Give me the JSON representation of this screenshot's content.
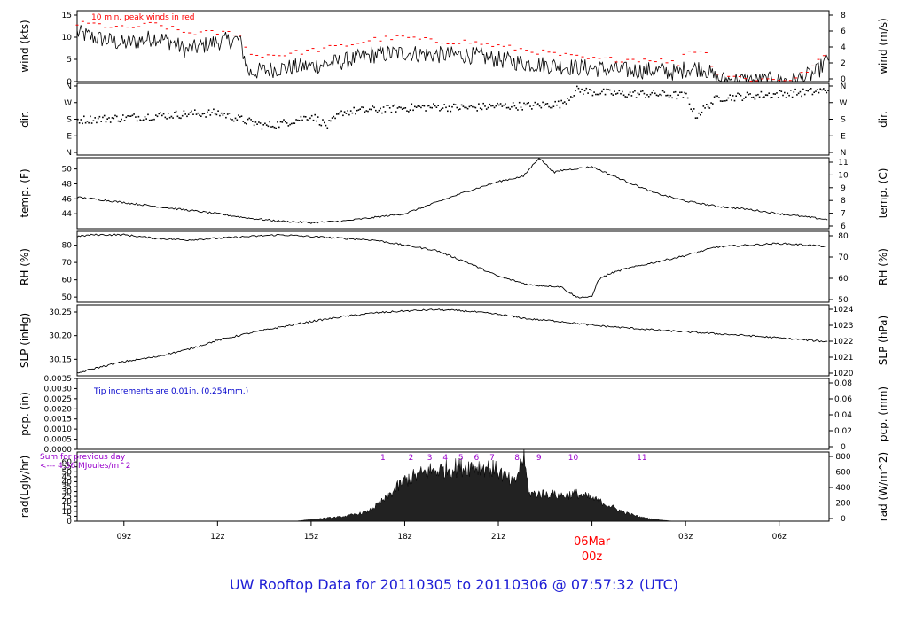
{
  "footer_title": "UW Rooftop Data for 20110305  to  20110306 @ 07:57:32  (UTC)",
  "colors": {
    "frame": "#000000",
    "trace": "#000000",
    "peak": "#ff0000",
    "note_blue": "#0000cc",
    "note_purple": "#9900cc",
    "footer": "#1f1fd6",
    "date_marker": "#ff0000"
  },
  "x_axis": {
    "ticks": [
      "09z",
      "12z",
      "15z",
      "18z",
      "21z",
      "03z",
      "06z"
    ],
    "date_marker": {
      "day": "06Mar",
      "hour": "00z"
    }
  },
  "chart_data": [
    {
      "type": "line",
      "panel": "wind",
      "ylabel": "wind (kts)",
      "ylabel_right": "wind (m/s)",
      "annotation": "10 min. peak winds in red",
      "yticks": [
        "0",
        "5",
        "10",
        "15"
      ],
      "yticks_right": [
        "0",
        "2",
        "4",
        "6",
        "8"
      ],
      "ylim": [
        0,
        16
      ],
      "x_hours": [
        7.5,
        8,
        9,
        10,
        10.5,
        11,
        12,
        12.7,
        13,
        14,
        15,
        16,
        17,
        18,
        19,
        20,
        21,
        22,
        23,
        24,
        25,
        26,
        26.8,
        27,
        27.6,
        28,
        29,
        30,
        30.5,
        31.2,
        31.6
      ],
      "series": [
        {
          "role": "wind",
          "values": [
            11,
            10,
            8.5,
            10,
            9,
            7,
            9,
            9.5,
            2,
            3,
            3.5,
            4.5,
            6,
            6.5,
            6,
            6,
            5,
            4,
            3.5,
            3,
            2.5,
            2.5,
            2,
            3,
            3,
            0.5,
            0.2,
            0.2,
            0.2,
            2,
            5.5
          ]
        },
        {
          "role": "10 min peak",
          "values": [
            13,
            13,
            12,
            13,
            12,
            11,
            11,
            11,
            6,
            6,
            7,
            8,
            9.5,
            10,
            9,
            9,
            8,
            7,
            6,
            5,
            5,
            5,
            4,
            7,
            7,
            2,
            0.5,
            0.5,
            0.5,
            4,
            7
          ]
        }
      ]
    },
    {
      "type": "scatter",
      "panel": "dir",
      "ylabel": "dir.",
      "ylabel_right": "dir.",
      "yticks": [
        "N",
        "E",
        "S",
        "W",
        "N"
      ],
      "ylim": [
        0,
        360
      ],
      "x_hours": [
        7.5,
        9,
        10,
        11,
        12,
        13,
        13.5,
        14,
        15,
        15.5,
        16,
        17,
        18,
        19,
        20,
        21,
        22,
        23,
        23.5,
        24,
        25,
        26,
        27,
        27.3,
        28,
        29,
        30,
        31,
        31.6
      ],
      "values": [
        180,
        190,
        200,
        210,
        215,
        170,
        150,
        160,
        200,
        150,
        220,
        230,
        240,
        245,
        240,
        250,
        250,
        260,
        330,
        320,
        310,
        310,
        300,
        200,
        290,
        300,
        310,
        320,
        330
      ]
    },
    {
      "type": "line",
      "panel": "temp",
      "ylabel": "temp. (F)",
      "ylabel_right": "temp. (C)",
      "yticks": [
        "44",
        "46",
        "48",
        "50"
      ],
      "yticks_right": [
        "6",
        "7",
        "8",
        "9",
        "10",
        "11"
      ],
      "ylim": [
        42,
        51.5
      ],
      "x_hours": [
        7.5,
        8,
        9,
        10,
        11,
        12,
        13,
        14,
        15,
        16,
        17,
        18,
        19,
        20,
        21,
        21.8,
        22.3,
        22.8,
        23,
        24,
        25,
        26,
        27,
        28,
        29,
        30,
        31,
        31.6
      ],
      "values": [
        46.2,
        46,
        45.5,
        45,
        44.5,
        44,
        43.4,
        43,
        42.8,
        43,
        43.5,
        44,
        45.5,
        47,
        48.3,
        49,
        51.5,
        49.5,
        49.8,
        50.3,
        48.5,
        46.8,
        45.7,
        45,
        44.6,
        44,
        43.5,
        43.2
      ]
    },
    {
      "type": "line",
      "panel": "rh",
      "ylabel": "RH (%)",
      "ylabel_right": "RH (%)",
      "yticks": [
        "50",
        "60",
        "70",
        "80"
      ],
      "yticks_right": [
        "50",
        "60",
        "70",
        "80"
      ],
      "ylim": [
        47,
        88
      ],
      "x_hours": [
        7.5,
        8,
        9,
        10,
        11,
        12,
        13,
        14,
        15,
        16,
        17,
        18,
        19,
        20,
        21,
        22,
        23,
        23.5,
        24,
        24.2,
        24.5,
        25,
        26,
        27,
        28,
        29,
        30,
        31,
        31.6
      ],
      "values": [
        85,
        86,
        86,
        84,
        83,
        84,
        85,
        86,
        85,
        84,
        83,
        80,
        77,
        70,
        62,
        57,
        56,
        50,
        50,
        60,
        63,
        66,
        70,
        74,
        79,
        80,
        81,
        80,
        79
      ]
    },
    {
      "type": "line",
      "panel": "slp",
      "ylabel": "SLP (inHg)",
      "ylabel_right": "SLP (hPa)",
      "yticks": [
        "30.15",
        "30.20",
        "30.25"
      ],
      "yticks_right": [
        "1020",
        "1021",
        "1022",
        "1023",
        "1024"
      ],
      "ylim": [
        30.115,
        30.265
      ],
      "x_hours": [
        7.5,
        8,
        9,
        10,
        11,
        12,
        13,
        14,
        15,
        16,
        17,
        18,
        19,
        20,
        21,
        22,
        23,
        24,
        25,
        26,
        27,
        28,
        29,
        30,
        31,
        31.6
      ],
      "values": [
        30.12,
        30.13,
        30.145,
        30.155,
        30.17,
        30.19,
        30.205,
        30.218,
        30.23,
        30.24,
        30.248,
        30.252,
        30.255,
        30.252,
        30.245,
        30.235,
        30.23,
        30.222,
        30.217,
        30.212,
        30.208,
        30.204,
        30.2,
        30.195,
        30.19,
        30.187
      ]
    },
    {
      "type": "line",
      "panel": "pcp",
      "ylabel": "pcp. (in)",
      "ylabel_right": "pcp. (mm)",
      "annotation": "Tip increments are 0.01in. (0.254mm.)",
      "yticks": [
        "0.0000",
        "0.0005",
        "0.0010",
        "0.0015",
        "0.0020",
        "0.0025",
        "0.0030",
        "0.0035"
      ],
      "yticks_right": [
        "0",
        "0.02",
        "0.04",
        "0.06",
        "0.08"
      ],
      "ylim": [
        0,
        0.0035
      ],
      "x_hours": [
        7.5,
        31.6
      ],
      "values": [
        0,
        0
      ]
    },
    {
      "type": "area",
      "panel": "rad",
      "ylabel": "rad(Lgly/hr)",
      "ylabel_right": "rad (W/m^2)",
      "annotation_lines": [
        "Sum for previous day",
        "<--- 4.56 MJoules/m^2"
      ],
      "yticks": [
        "0",
        "5",
        "10",
        "15",
        "20",
        "25",
        "30",
        "35",
        "40",
        "45",
        "50",
        "55",
        "60"
      ],
      "yticks_right": [
        "0",
        "200",
        "400",
        "600",
        "800"
      ],
      "ylim": [
        0,
        70
      ],
      "hour_markers": [
        "1",
        "2",
        "3",
        "4",
        "5",
        "6",
        "7",
        "8",
        "9",
        "10",
        "11"
      ],
      "hour_marker_x": [
        17.3,
        18.2,
        18.8,
        19.3,
        19.8,
        20.3,
        20.8,
        21.6,
        22.3,
        23.4,
        25.6
      ],
      "x_hours": [
        14.5,
        15,
        16,
        16.8,
        17.4,
        18,
        18.8,
        19.5,
        20,
        20.5,
        21,
        21.5,
        21.8,
        22,
        22.5,
        23,
        23.5,
        24,
        24.5,
        25,
        25.5,
        26,
        26.6
      ],
      "values": [
        0,
        2,
        5,
        10,
        25,
        45,
        55,
        58,
        60,
        60,
        55,
        40,
        70,
        30,
        30,
        28,
        30,
        25,
        18,
        10,
        5,
        2,
        0
      ]
    }
  ]
}
